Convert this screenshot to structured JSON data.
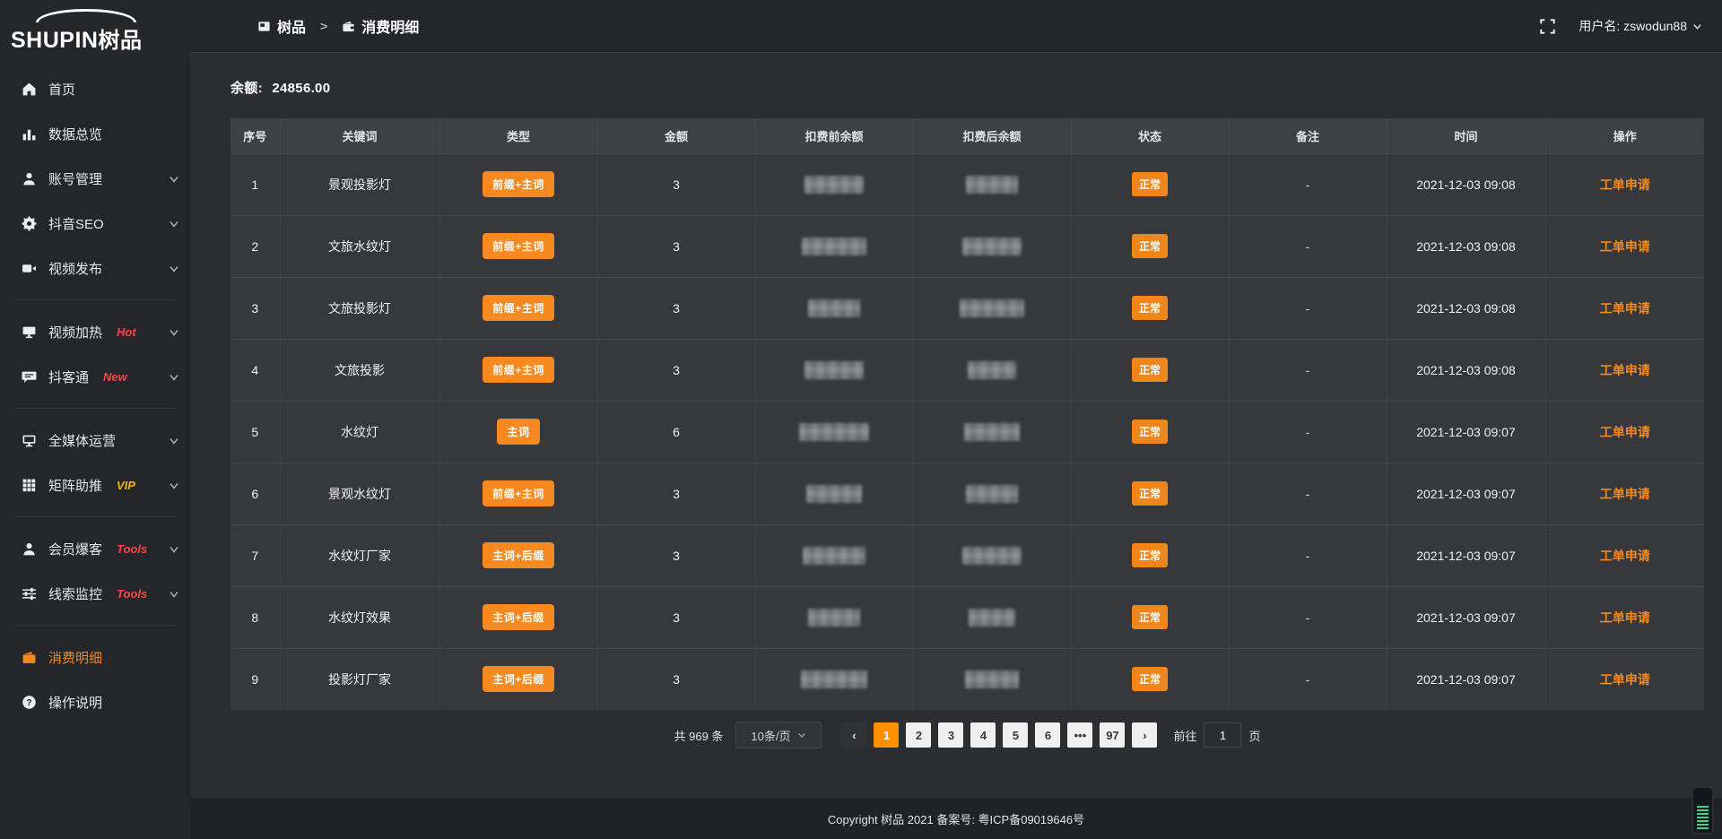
{
  "app": {
    "logo_en": "SHUPIN",
    "logo_cn": "树品"
  },
  "topbar": {
    "breadcrumb": [
      {
        "label": "树品",
        "icon": "page"
      },
      {
        "label": "消费明细",
        "icon": "wallet"
      }
    ],
    "separator": ">",
    "username_label": "用户名:",
    "username": "zswodun88"
  },
  "sidebar": {
    "items": [
      {
        "label": "首页",
        "icon": "home"
      },
      {
        "label": "数据总览",
        "icon": "bar-chart"
      },
      {
        "label": "账号管理",
        "icon": "user",
        "expandable": true
      },
      {
        "label": "抖音SEO",
        "icon": "gear",
        "expandable": true
      },
      {
        "label": "视频发布",
        "icon": "video",
        "expandable": true,
        "divider_after": true
      },
      {
        "label": "视频加热",
        "icon": "screen",
        "badge": "Hot",
        "badge_color": "#ff4545",
        "expandable": true
      },
      {
        "label": "抖客通",
        "icon": "chat",
        "badge": "New",
        "badge_color": "#ff4545",
        "expandable": true,
        "divider_after": true
      },
      {
        "label": "全媒体运营",
        "icon": "monitor",
        "expandable": true
      },
      {
        "label": "矩阵助推",
        "icon": "grid",
        "badge": "VIP",
        "badge_color": "#f7b500",
        "expandable": true,
        "divider_after": true
      },
      {
        "label": "会员爆客",
        "icon": "user",
        "badge": "Tools",
        "badge_color": "#ff4545",
        "expandable": true
      },
      {
        "label": "线索监控",
        "icon": "sliders",
        "badge": "Tools",
        "badge_color": "#ff4545",
        "expandable": true,
        "divider_after": true
      },
      {
        "label": "消费明细",
        "icon": "wallet",
        "active": true
      },
      {
        "label": "操作说明",
        "icon": "question"
      }
    ]
  },
  "balance": {
    "label": "余额:",
    "value": "24856.00"
  },
  "table": {
    "columns": [
      "序号",
      "关键词",
      "类型",
      "金额",
      "扣费前余额",
      "扣费后余额",
      "状态",
      "备注",
      "时间",
      "操作"
    ],
    "masked_columns": [
      "扣费前余额",
      "扣费后余额"
    ],
    "rows": [
      {
        "no": "1",
        "keyword": "景观投影灯",
        "type": "前缀+主词",
        "amount": "3",
        "balance_before": "masked",
        "balance_after": "masked",
        "status": "正常",
        "remark": "-",
        "time": "2021-12-03 09:08",
        "action": "工单申请"
      },
      {
        "no": "2",
        "keyword": "文旅水纹灯",
        "type": "前缀+主词",
        "amount": "3",
        "balance_before": "masked",
        "balance_after": "masked",
        "status": "正常",
        "remark": "-",
        "time": "2021-12-03 09:08",
        "action": "工单申请"
      },
      {
        "no": "3",
        "keyword": "文旅投影灯",
        "type": "前缀+主词",
        "amount": "3",
        "balance_before": "masked",
        "balance_after": "masked",
        "status": "正常",
        "remark": "-",
        "time": "2021-12-03 09:08",
        "action": "工单申请"
      },
      {
        "no": "4",
        "keyword": "文旅投影",
        "type": "前缀+主词",
        "amount": "3",
        "balance_before": "masked",
        "balance_after": "masked",
        "status": "正常",
        "remark": "-",
        "time": "2021-12-03 09:08",
        "action": "工单申请"
      },
      {
        "no": "5",
        "keyword": "水纹灯",
        "type": "主词",
        "amount": "6",
        "balance_before": "masked",
        "balance_after": "masked",
        "status": "正常",
        "remark": "-",
        "time": "2021-12-03 09:07",
        "action": "工单申请"
      },
      {
        "no": "6",
        "keyword": "景观水纹灯",
        "type": "前缀+主词",
        "amount": "3",
        "balance_before": "masked",
        "balance_after": "masked",
        "status": "正常",
        "remark": "-",
        "time": "2021-12-03 09:07",
        "action": "工单申请"
      },
      {
        "no": "7",
        "keyword": "水纹灯厂家",
        "type": "主词+后缀",
        "amount": "3",
        "balance_before": "masked",
        "balance_after": "masked",
        "status": "正常",
        "remark": "-",
        "time": "2021-12-03 09:07",
        "action": "工单申请"
      },
      {
        "no": "8",
        "keyword": "水纹灯效果",
        "type": "主词+后缀",
        "amount": "3",
        "balance_before": "masked",
        "balance_after": "masked",
        "status": "正常",
        "remark": "-",
        "time": "2021-12-03 09:07",
        "action": "工单申请"
      },
      {
        "no": "9",
        "keyword": "投影灯厂家",
        "type": "主词+后缀",
        "amount": "3",
        "balance_before": "masked",
        "balance_after": "masked",
        "status": "正常",
        "remark": "-",
        "time": "2021-12-03 09:07",
        "action": "工单申请"
      }
    ]
  },
  "pagination": {
    "total": "共 969 条",
    "page_size": "10条/页",
    "pages": [
      "1",
      "2",
      "3",
      "4",
      "5",
      "6",
      "•••",
      "97"
    ],
    "active_page": "1",
    "goto_label": "前往",
    "goto_value": "1",
    "goto_suffix": "页"
  },
  "footer": {
    "copyright": "Copyright 树品 2021 备案号: 粤ICP备09019646号"
  },
  "colors": {
    "accent": "#f6891f",
    "active_page": "#ff9000",
    "badge_red": "#ff4545",
    "badge_vip": "#f7b500"
  }
}
